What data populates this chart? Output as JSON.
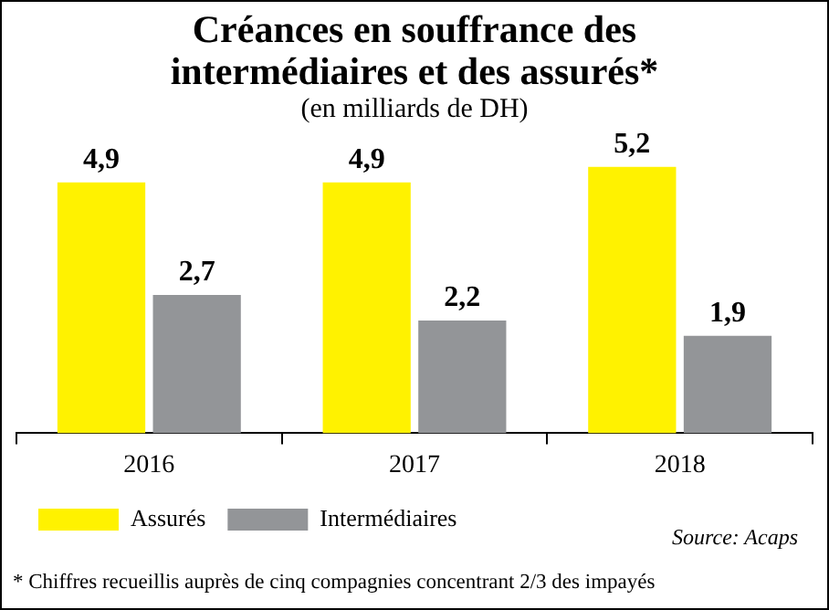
{
  "chart_data": {
    "type": "bar",
    "title": "Créances en souffrance des intermédiaires et des assurés*",
    "subtitle": "(en milliards de DH)",
    "categories": [
      "2016",
      "2017",
      "2018"
    ],
    "series": [
      {
        "name": "Assurés",
        "color": "#fff200",
        "values": [
          4.9,
          4.9,
          5.2
        ],
        "value_labels": [
          "4,9",
          "4,9",
          "5,2"
        ]
      },
      {
        "name": "Intermédiaires",
        "color": "#939598",
        "values": [
          2.7,
          2.2,
          1.9
        ],
        "value_labels": [
          "2,7",
          "2,2",
          "1,9"
        ]
      }
    ],
    "grid": false,
    "legend": "bottom left",
    "annotations": [
      "Source: Acaps",
      "* Chiffres recueillis auprès de cinq compagnies concentrant 2/3 des impayés"
    ]
  }
}
